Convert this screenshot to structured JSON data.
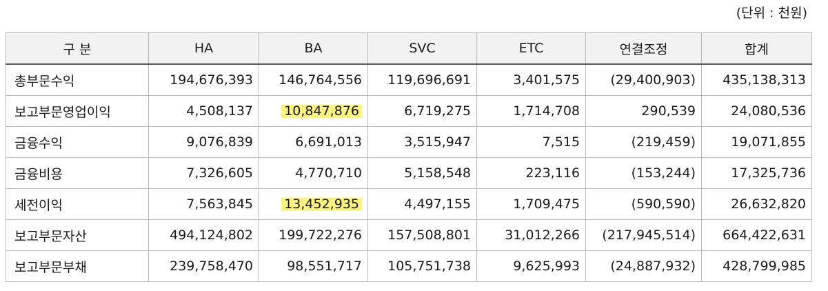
{
  "unit_note": "(단위 : 천원)",
  "table": {
    "headers": [
      "구 분",
      "HA",
      "BA",
      "SVC",
      "ETC",
      "연결조정",
      "합계"
    ],
    "rows": [
      {
        "label": "총부문수익",
        "values": [
          "194,676,393",
          "146,764,556",
          "119,696,691",
          "3,401,575",
          "(29,400,903)",
          "435,138,313"
        ],
        "highlight": null
      },
      {
        "label": "보고부문영업이익",
        "values": [
          "4,508,137",
          "10,847,876",
          "6,719,275",
          "1,714,708",
          "290,539",
          "24,080,536"
        ],
        "highlight": 1
      },
      {
        "label": "금융수익",
        "values": [
          "9,076,839",
          "6,691,013",
          "3,515,947",
          "7,515",
          "(219,459)",
          "19,071,855"
        ],
        "highlight": null
      },
      {
        "label": "금융비용",
        "values": [
          "7,326,605",
          "4,770,710",
          "5,158,548",
          "223,116",
          "(153,244)",
          "17,325,736"
        ],
        "highlight": null
      },
      {
        "label": "세전이익",
        "values": [
          "7,563,845",
          "13,452,935",
          "4,497,155",
          "1,709,475",
          "(590,590)",
          "26,632,820"
        ],
        "highlight": 1
      },
      {
        "label": "보고부문자산",
        "values": [
          "494,124,802",
          "199,722,276",
          "157,508,801",
          "31,012,266",
          "(217,945,514)",
          "664,422,631"
        ],
        "highlight": null
      },
      {
        "label": "보고부문부채",
        "values": [
          "239,758,470",
          "98,551,717",
          "105,751,738",
          "9,625,993",
          "(24,887,932)",
          "428,799,985"
        ],
        "highlight": null
      }
    ]
  },
  "colors": {
    "highlight": "#fbf283",
    "border": "#b8b8b8",
    "header_bg": "#f2f2f2"
  }
}
